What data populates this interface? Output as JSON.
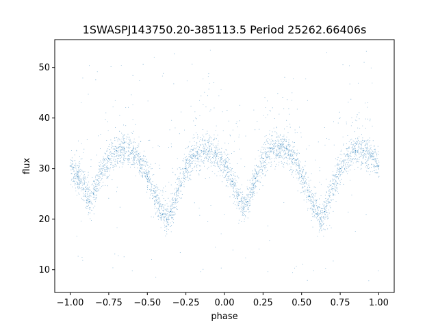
{
  "chart_data": {
    "type": "scatter",
    "title": "1SWASPJ143750.20-385113.5 Period 25262.66406s",
    "xlabel": "phase",
    "ylabel": "flux",
    "xlim": [
      -1.1,
      1.1
    ],
    "ylim": [
      5.5,
      55.5
    ],
    "xticks": [
      -1.0,
      -0.75,
      -0.5,
      -0.25,
      0.0,
      0.25,
      0.5,
      0.75,
      1.0
    ],
    "xtick_labels": [
      "−1.00",
      "−0.75",
      "−0.50",
      "−0.25",
      "0.00",
      "0.25",
      "0.50",
      "0.75",
      "1.00"
    ],
    "yticks": [
      10,
      20,
      30,
      40,
      50
    ],
    "ytick_labels": [
      "10",
      "20",
      "30",
      "40",
      "50"
    ],
    "grid": false,
    "legend": "none",
    "point_color": "#1f77b4",
    "series": [
      {
        "x": [
          -1.0,
          -0.95,
          -0.9,
          -0.875,
          -0.85,
          -0.8,
          -0.75,
          -0.7,
          -0.65,
          -0.6,
          -0.55,
          -0.5,
          -0.45,
          -0.4,
          -0.375,
          -0.35,
          -0.3,
          -0.25,
          -0.2,
          -0.15,
          -0.1,
          -0.05,
          0.0,
          0.05,
          0.1,
          0.125,
          0.15,
          0.2,
          0.25,
          0.3,
          0.35,
          0.4,
          0.45,
          0.5,
          0.55,
          0.6,
          0.625,
          0.65,
          0.7,
          0.75,
          0.8,
          0.85,
          0.9,
          0.95,
          1.0
        ],
        "y": [
          30.5,
          28.5,
          25.5,
          23.5,
          25.0,
          29.0,
          32.0,
          33.5,
          34.0,
          33.5,
          31.5,
          28.5,
          24.5,
          21.0,
          20.0,
          21.5,
          26.0,
          30.0,
          32.5,
          33.5,
          33.5,
          32.5,
          30.5,
          27.5,
          23.5,
          22.0,
          23.5,
          28.0,
          32.0,
          34.0,
          34.5,
          34.0,
          32.0,
          28.5,
          24.5,
          21.0,
          20.0,
          21.5,
          26.0,
          30.0,
          32.5,
          33.5,
          33.5,
          32.5,
          30.5
        ]
      }
    ]
  }
}
